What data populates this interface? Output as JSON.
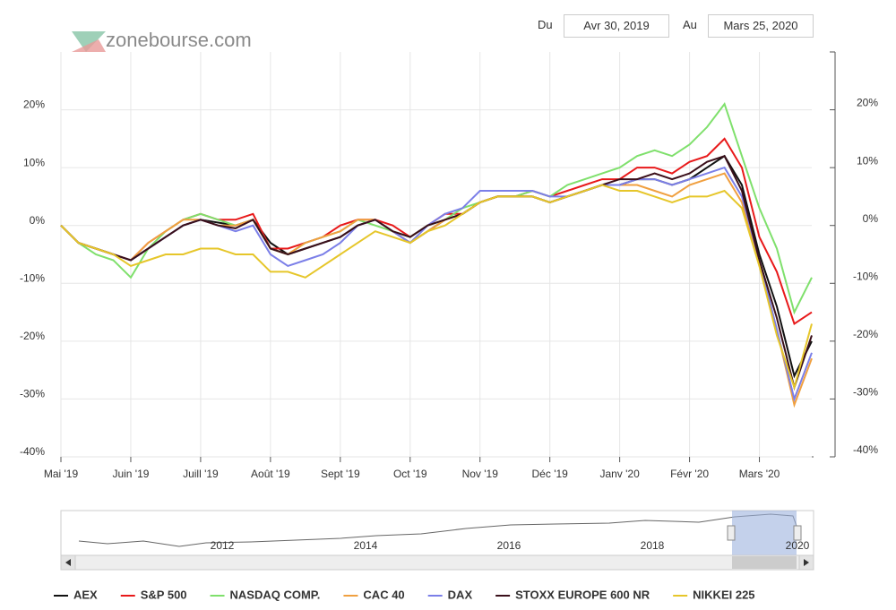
{
  "header": {
    "logo": "zonebourse.com",
    "from_label": "Du",
    "from_date": "Avr 30, 2019",
    "to_label": "Au",
    "to_date": "Mars 25, 2020"
  },
  "navigator": {
    "years": [
      "2012",
      "2014",
      "2016",
      "2018",
      "2020"
    ]
  },
  "chart_data": {
    "type": "line",
    "categories": [
      "Mai '19",
      null,
      null,
      null,
      "Juin '19",
      null,
      null,
      null,
      "Juill '19",
      null,
      null,
      null,
      "Août '19",
      null,
      null,
      null,
      "Sept '19",
      null,
      null,
      null,
      "Oct '19",
      null,
      null,
      null,
      "Nov '19",
      null,
      null,
      null,
      "Déc '19",
      null,
      null,
      null,
      "Janv '20",
      null,
      null,
      null,
      "Févr '20",
      null,
      null,
      null,
      "Mars '20",
      null,
      null,
      null
    ],
    "ylim": [
      -40,
      30
    ],
    "yticks": [
      {
        "value": -40,
        "label": "-40%"
      },
      {
        "value": -30,
        "label": "-30%"
      },
      {
        "value": -20,
        "label": "-20%"
      },
      {
        "value": -10,
        "label": "-10%"
      },
      {
        "value": 0,
        "label": "0%"
      },
      {
        "value": 10,
        "label": "10%"
      },
      {
        "value": 20,
        "label": "20%"
      }
    ],
    "grid": true,
    "series": [
      {
        "name": "AEX",
        "color": "#111111",
        "values": [
          0,
          -3,
          -4,
          -5,
          -6,
          -4,
          -2,
          0,
          1,
          0.5,
          0,
          1,
          -3,
          -5,
          -4,
          -3,
          -2,
          0,
          1,
          -1,
          -3,
          -1,
          1,
          2,
          4,
          5,
          5,
          5,
          4,
          5,
          6,
          7,
          7,
          8,
          8,
          7,
          8,
          10,
          12,
          7,
          -5,
          -14,
          -26,
          -20
        ]
      },
      {
        "name": "S&P 500",
        "color": "#e8191a",
        "values": [
          0,
          -3,
          -4,
          -5,
          -6,
          -3,
          -1,
          1,
          2,
          1,
          1,
          2,
          -4,
          -4,
          -3,
          -2,
          0,
          1,
          1,
          0,
          -2,
          0,
          2,
          2,
          4,
          5,
          5,
          6,
          5,
          6,
          7,
          8,
          8,
          10,
          10,
          9,
          11,
          12,
          15,
          10,
          -2,
          -8,
          -17,
          -15
        ]
      },
      {
        "name": "NASDAQ COMP.",
        "color": "#7fe06c",
        "values": [
          0,
          -3,
          -5,
          -6,
          -9,
          -4,
          -1,
          1,
          2,
          1,
          0,
          1,
          -4,
          -5,
          -3,
          -2,
          -1,
          1,
          0,
          -1,
          -2,
          0,
          1,
          3,
          4,
          5,
          5,
          6,
          5,
          7,
          8,
          9,
          10,
          12,
          13,
          12,
          14,
          17,
          21,
          12,
          3,
          -4,
          -15,
          -9
        ]
      },
      {
        "name": "CAC 40",
        "color": "#f0a040",
        "values": [
          0,
          -3,
          -4,
          -5,
          -6,
          -3,
          -1,
          1,
          1,
          0,
          0,
          1,
          -4,
          -5,
          -3,
          -2,
          -1,
          1,
          1,
          -1,
          -3,
          -1,
          1,
          2,
          4,
          5,
          5,
          5,
          4,
          5,
          6,
          7,
          7,
          7,
          6,
          5,
          7,
          8,
          9,
          4,
          -7,
          -18,
          -31,
          -23
        ]
      },
      {
        "name": "DAX",
        "color": "#7b7fe8",
        "values": [
          0,
          -3,
          -4,
          -5,
          -6,
          -4,
          -2,
          0,
          1,
          0,
          -1,
          0,
          -5,
          -7,
          -6,
          -5,
          -3,
          0,
          1,
          -1,
          -3,
          0,
          2,
          3,
          6,
          6,
          6,
          6,
          5,
          5,
          6,
          7,
          7,
          8,
          8,
          7,
          8,
          9,
          10,
          5,
          -6,
          -18,
          -30,
          -22
        ]
      },
      {
        "name": "STOXX EUROPE 600 NR",
        "color": "#3a0f1a",
        "values": [
          0,
          -3,
          -4,
          -5,
          -6,
          -4,
          -2,
          0,
          1,
          0,
          -0.5,
          1,
          -4,
          -5,
          -4,
          -3,
          -2,
          0,
          1,
          -1,
          -2,
          0,
          1,
          2,
          4,
          5,
          5,
          5,
          4,
          5,
          6,
          7,
          8,
          8,
          9,
          8,
          9,
          11,
          12,
          6,
          -6,
          -16,
          -28,
          -19
        ]
      },
      {
        "name": "NIKKEI 225",
        "color": "#e6c62a",
        "values": [
          0,
          -3,
          -4,
          -5,
          -7,
          -6,
          -5,
          -5,
          -4,
          -4,
          -5,
          -5,
          -8,
          -8,
          -9,
          -7,
          -5,
          -3,
          -1,
          -2,
          -3,
          -1,
          0,
          2,
          4,
          5,
          5,
          5,
          4,
          5,
          6,
          7,
          6,
          6,
          5,
          4,
          5,
          5,
          6,
          3,
          -7,
          -19,
          -28,
          -17
        ]
      }
    ]
  }
}
